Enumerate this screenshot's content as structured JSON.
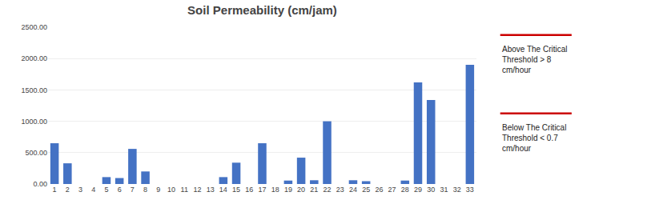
{
  "chart_data": {
    "type": "bar",
    "title": "Soil Permeability (cm/jam)",
    "categories": [
      "1",
      "2",
      "3",
      "4",
      "5",
      "6",
      "7",
      "8",
      "9",
      "10",
      "11",
      "12",
      "13",
      "14",
      "15",
      "16",
      "17",
      "18",
      "19",
      "20",
      "21",
      "22",
      "23",
      "24",
      "25",
      "26",
      "27",
      "28",
      "29",
      "30",
      "31",
      "32",
      "33"
    ],
    "values": [
      650,
      330,
      0,
      0,
      110,
      95,
      560,
      200,
      0,
      0,
      0,
      0,
      0,
      110,
      340,
      0,
      650,
      0,
      55,
      420,
      60,
      1000,
      0,
      60,
      45,
      0,
      0,
      55,
      1620,
      1340,
      0,
      0,
      1900
    ],
    "color": "#4472C4",
    "ylim": [
      0,
      2500
    ],
    "yticks": [
      {
        "value": 0,
        "label": "0.00"
      },
      {
        "value": 500,
        "label": "500.00"
      },
      {
        "value": 1000,
        "label": "1000.00"
      },
      {
        "value": 1500,
        "label": "1500.00"
      },
      {
        "value": 2000,
        "label": "2000.00"
      },
      {
        "value": 2500,
        "label": "2500.00"
      }
    ],
    "grid": true,
    "annotations": [
      {
        "text": "Above The Critical\nThreshold > 8\ncm/hour",
        "color": "#CC0000"
      },
      {
        "text": "Below The Critical\nThreshold < 0.7\ncm/hour",
        "color": "#CC0000"
      }
    ]
  }
}
